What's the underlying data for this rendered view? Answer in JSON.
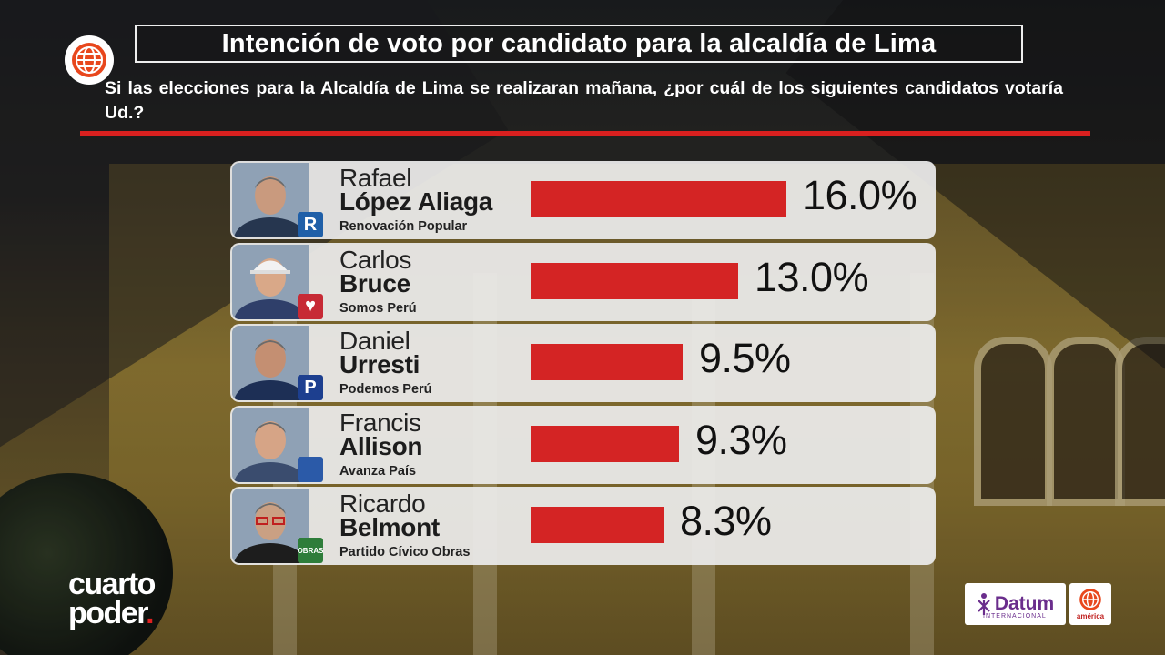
{
  "header": {
    "title": "Intención de voto por candidato para la alcaldía de Lima",
    "question": "Si las elecciones para la Alcaldía de Lima se realizaran mañana, ¿por cuál de los siguientes candidatos votaría Ud.?"
  },
  "candidates": [
    {
      "first": "Rafael",
      "last": "López Aliaga",
      "party": "Renovación Popular",
      "value_label": "16.0%",
      "badge": "R",
      "badge_color": "#1f5fa8"
    },
    {
      "first": "Carlos",
      "last": "Bruce",
      "party": "Somos Perú",
      "value_label": "13.0%",
      "badge": "♥",
      "badge_color": "#c72a35"
    },
    {
      "first": "Daniel",
      "last": "Urresti",
      "party": "Podemos Perú",
      "value_label": "9.5%",
      "badge": "P",
      "badge_color": "#1d3f8f"
    },
    {
      "first": "Francis",
      "last": "Allison",
      "party": "Avanza País",
      "value_label": "9.3%",
      "badge": "",
      "badge_color": "#2b5aa8"
    },
    {
      "first": "Ricardo",
      "last": "Belmont",
      "party": "Partido Cívico Obras",
      "value_label": "8.3%",
      "badge": "OBRAS",
      "badge_color": "#2e7d3a"
    }
  ],
  "chart_data": {
    "type": "bar",
    "title": "Intención de voto por candidato para la alcaldía de Lima",
    "categories": [
      "Rafael López Aliaga",
      "Carlos Bruce",
      "Daniel Urresti",
      "Francis Allison",
      "Ricardo Belmont"
    ],
    "values": [
      16.0,
      13.0,
      9.5,
      9.3,
      8.3
    ],
    "unit": "%",
    "orientation": "horizontal",
    "bar_color": "#d42424",
    "grid": false
  },
  "footer": {
    "brand_left": [
      "cuarto",
      "poder"
    ],
    "datum_label": "Datum",
    "datum_sub": "INTERNACIONAL",
    "america_label": "américa"
  },
  "colors": {
    "accent_red": "#d9201f",
    "panel": "#ececec"
  }
}
